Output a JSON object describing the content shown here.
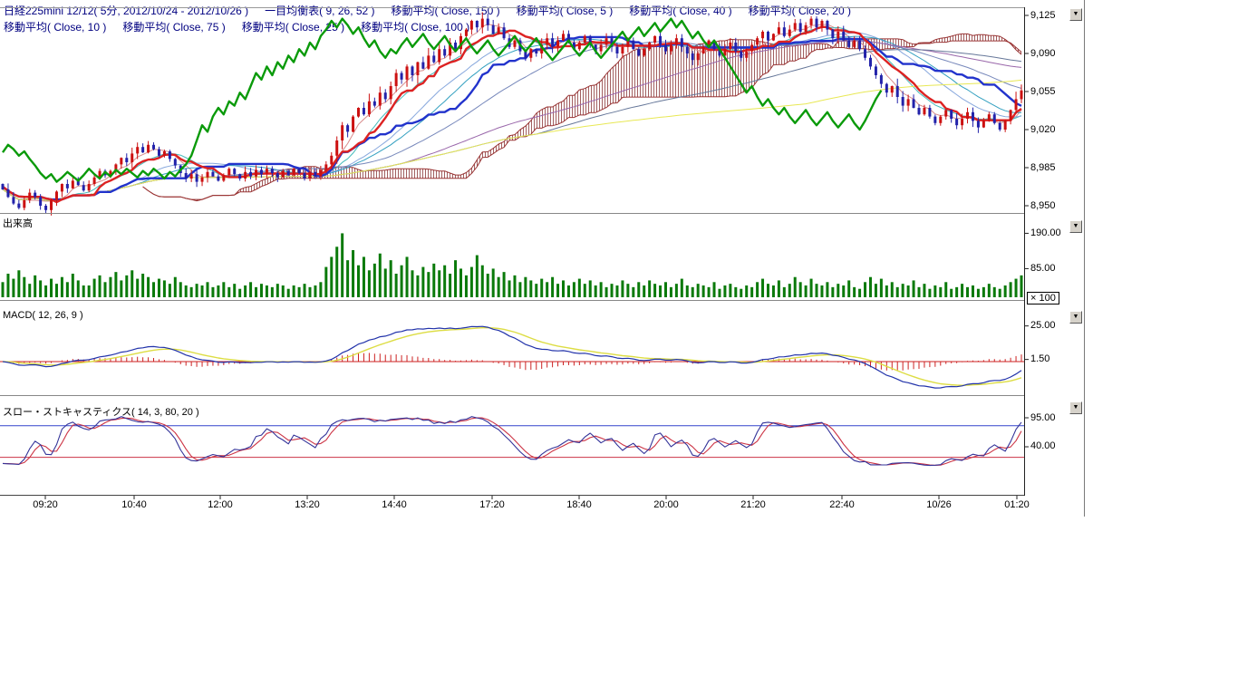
{
  "legend": {
    "row1": [
      "日経225mini 12/12( 5分, 2012/10/24 - 2012/10/26 )",
      "一目均衡表( 9, 26, 52 )",
      "移動平均( Close, 150 )",
      "移動平均( Close, 5 )",
      "移動平均( Close, 40 )",
      "移動平均( Close, 20 )"
    ],
    "row2": [
      "移動平均( Close, 10 )",
      "移動平均( Close, 75 )",
      "移動平均( Close, 25 )",
      "移動平均( Close, 100 )"
    ]
  },
  "panels": [
    {
      "id": "price",
      "label": "",
      "axis_labels": [
        "9,125",
        "9,090",
        "9,055",
        "9,020",
        "8,985",
        "8,950"
      ]
    },
    {
      "id": "volume",
      "label": "出来高",
      "axis_labels": [
        "190.00",
        "85.00"
      ],
      "unit_box": "× 100"
    },
    {
      "id": "macd",
      "label": "MACD( 12, 26, 9 )",
      "axis_labels": [
        "25.00",
        "1.50"
      ]
    },
    {
      "id": "stoch",
      "label": "スロー・ストキャスティクス( 14, 3, 80, 20 )",
      "axis_labels": [
        "95.00",
        "40.00"
      ]
    }
  ],
  "ui": {
    "arrow_glyph": "▼"
  },
  "chart_data": {
    "type": "candlestick",
    "title": "日経225mini 12/12( 5分, 2012/10/24 - 2012/10/26 )",
    "interval": "5分",
    "date_range": "2012/10/24 - 2012/10/26",
    "price_ticks": [
      9125,
      9090,
      9055,
      9020,
      8985,
      8950
    ],
    "ylim": [
      8943,
      9133
    ],
    "volume_ticks": [
      190,
      85
    ],
    "volume_unit": "× 100",
    "macd_ticks": [
      25,
      1.5
    ],
    "stoch_ticks": [
      95,
      40
    ],
    "stoch_ref_lines": [
      80,
      20
    ],
    "indicators": {
      "ichimoku": [
        9,
        26,
        52
      ],
      "sma_periods": [
        5,
        10,
        20,
        25,
        40,
        75,
        100,
        150
      ],
      "macd": [
        12,
        26,
        9
      ],
      "stochastics": [
        14,
        3,
        80,
        20
      ]
    },
    "time_labels": [
      "09:20",
      "10:40",
      "12:00",
      "13:20",
      "14:40",
      "17:20",
      "18:40",
      "20:00",
      "21:20",
      "22:40",
      "10/26",
      "01:20"
    ],
    "time_label_x": [
      50,
      148,
      243,
      339,
      435,
      543,
      639,
      735,
      831,
      929,
      1036,
      1122
    ],
    "close": [
      8965,
      8958,
      8952,
      8948,
      8955,
      8962,
      8958,
      8950,
      8946,
      8955,
      8963,
      8970,
      8966,
      8973,
      8969,
      8964,
      8970,
      8976,
      8982,
      8978,
      8982,
      8988,
      8994,
      8990,
      8998,
      9004,
      8999,
      9006,
      9002,
      8996,
      9000,
      8993,
      8987,
      8980,
      8975,
      8979,
      8972,
      8976,
      8981,
      8977,
      8973,
      8978,
      8984,
      8979,
      8975,
      8981,
      8977,
      8983,
      8979,
      8984,
      8980,
      8976,
      8982,
      8978,
      8984,
      8980,
      8975,
      8981,
      8977,
      8983,
      8988,
      8996,
      9010,
      9024,
      9018,
      9032,
      9040,
      9034,
      9046,
      9042,
      9054,
      9048,
      9060,
      9072,
      9066,
      9078,
      9070,
      9082,
      9076,
      9088,
      9082,
      9094,
      9088,
      9100,
      9094,
      9106,
      9112,
      9120,
      9114,
      9122,
      9116,
      9108,
      9114,
      9104,
      9096,
      9102,
      9092,
      9086,
      9094,
      9090,
      9098,
      9104,
      9096,
      9102,
      9108,
      9100,
      9094,
      9100,
      9106,
      9098,
      9092,
      9098,
      9104,
      9096,
      9090,
      9096,
      9102,
      9094,
      9088,
      9094,
      9100,
      9106,
      9098,
      9092,
      9098,
      9104,
      9096,
      9090,
      9084,
      9090,
      9096,
      9102,
      9094,
      9088,
      9094,
      9100,
      9092,
      9086,
      9092,
      9098,
      9104,
      9110,
      9102,
      9108,
      9114,
      9106,
      9112,
      9118,
      9110,
      9116,
      9122,
      9114,
      9120,
      9112,
      9104,
      9110,
      9102,
      9096,
      9102,
      9094,
      9086,
      9078,
      9070,
      9062,
      9054,
      9060,
      9050,
      9042,
      9048,
      9040,
      9034,
      9040,
      9032,
      9026,
      9032,
      9038,
      9030,
      9024,
      9030,
      9036,
      9028,
      9022,
      9028,
      9034,
      9026,
      9020,
      9028,
      9038,
      9048,
      9056
    ],
    "volume": [
      45,
      70,
      55,
      80,
      60,
      40,
      65,
      50,
      35,
      55,
      40,
      60,
      45,
      70,
      50,
      35,
      35,
      55,
      65,
      45,
      60,
      75,
      50,
      65,
      80,
      55,
      70,
      60,
      45,
      55,
      50,
      40,
      60,
      45,
      35,
      30,
      40,
      35,
      45,
      30,
      35,
      45,
      30,
      40,
      25,
      35,
      45,
      30,
      40,
      35,
      30,
      40,
      35,
      25,
      35,
      30,
      40,
      30,
      35,
      45,
      90,
      120,
      150,
      190,
      110,
      140,
      95,
      120,
      80,
      100,
      130,
      85,
      110,
      70,
      95,
      120,
      80,
      65,
      90,
      75,
      100,
      80,
      95,
      70,
      110,
      85,
      65,
      90,
      125,
      95,
      70,
      85,
      60,
      75,
      50,
      65,
      45,
      60,
      50,
      40,
      55,
      45,
      60,
      40,
      50,
      35,
      45,
      55,
      40,
      50,
      35,
      45,
      30,
      40,
      35,
      50,
      40,
      30,
      45,
      35,
      50,
      40,
      35,
      45,
      30,
      40,
      55,
      35,
      30,
      40,
      35,
      30,
      45,
      25,
      35,
      40,
      30,
      25,
      35,
      30,
      45,
      55,
      40,
      35,
      50,
      30,
      40,
      60,
      45,
      35,
      55,
      40,
      35,
      45,
      30,
      40,
      35,
      50,
      30,
      25,
      45,
      60,
      40,
      55,
      35,
      45,
      30,
      40,
      35,
      50,
      30,
      40,
      25,
      35,
      30,
      45,
      25,
      30,
      40,
      30,
      35,
      25,
      30,
      40,
      30,
      25,
      35,
      45,
      55,
      65
    ],
    "colors": {
      "up": "#cc1111",
      "down": "#2222aa",
      "tenkan": "#dd2222",
      "kijun": "#2233cc",
      "chikou": "#0a9a0a",
      "cloud": "#993333",
      "volume": "#0a7a0a",
      "macd_line": "#2233aa",
      "macd_signal": "#dddd44",
      "macd_zero": "#cc2222",
      "macd_hist": "#cc2222",
      "stoch_k": "#333399",
      "stoch_d": "#cc3344",
      "stoch_ref_hi": "#3344cc",
      "stoch_ref_lo": "#cc3344"
    },
    "sma_colors": [
      "#d98c8c",
      "#44bbbb",
      "#88a8dd",
      "#33a0c0",
      "#7788bb",
      "#9966aa",
      "#667799",
      "#e8e855"
    ]
  }
}
